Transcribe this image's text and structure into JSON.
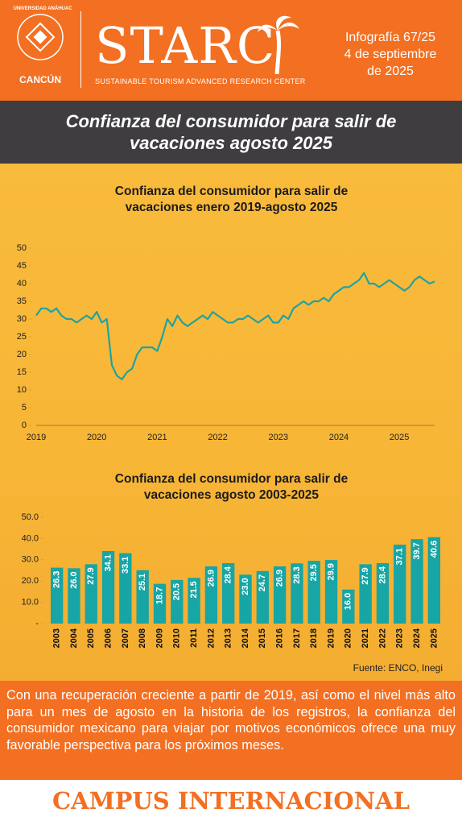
{
  "header": {
    "university": "UNIVERSIDAD ANÁHUAC",
    "campus": "CANCÚN",
    "brand": "STARC",
    "brand_subtitle": "SUSTAINABLE TOURISM ADVANCED RESEARCH CENTER",
    "issue": "Infografía 67/25",
    "date_line1": "4 de septiembre",
    "date_line2": "de 2025"
  },
  "title": "Confianza del consumidor para salir de vacaciones agosto 2025",
  "chart_data": [
    {
      "type": "line",
      "title": "Confianza del consumidor para salir de vacaciones enero 2019-agosto 2025",
      "color": "#1fa3a0",
      "categories": [
        "2019",
        null,
        null,
        null,
        null,
        null,
        null,
        null,
        null,
        null,
        null,
        null,
        "2020",
        null,
        null,
        null,
        null,
        null,
        null,
        null,
        null,
        null,
        null,
        null,
        "2021",
        null,
        null,
        null,
        null,
        null,
        null,
        null,
        null,
        null,
        null,
        null,
        "2022",
        null,
        null,
        null,
        null,
        null,
        null,
        null,
        null,
        null,
        null,
        null,
        "2023",
        null,
        null,
        null,
        null,
        null,
        null,
        null,
        null,
        null,
        null,
        null,
        "2024",
        null,
        null,
        null,
        null,
        null,
        null,
        null,
        null,
        null,
        null,
        null,
        "2025",
        null,
        null,
        null,
        null,
        null,
        null,
        null
      ],
      "values": [
        31,
        33,
        33,
        32,
        33,
        31,
        30,
        30,
        29,
        30,
        31,
        30,
        32,
        29,
        30,
        17,
        14,
        13,
        15,
        16,
        20,
        22,
        22,
        22,
        21,
        25,
        30,
        28,
        31,
        29,
        28,
        29,
        30,
        31,
        30,
        32,
        31,
        30,
        29,
        29,
        30,
        30,
        31,
        30,
        29,
        30,
        31,
        29,
        29,
        31,
        30,
        33,
        34,
        35,
        34,
        35,
        35,
        36,
        35,
        37,
        38,
        39,
        39,
        40,
        41,
        43,
        40,
        40,
        39,
        40,
        41,
        40,
        39,
        38,
        39,
        41,
        42,
        41,
        40,
        40.6
      ],
      "ylim": [
        0,
        50
      ],
      "yticks": [
        0,
        5,
        10,
        15,
        20,
        25,
        30,
        35,
        40,
        45,
        50
      ]
    },
    {
      "type": "bar",
      "title": "Confianza del consumidor para salir de vacaciones agosto 2003-2025",
      "color": "#17a5a5",
      "categories": [
        "2003",
        "2004",
        "2005",
        "2006",
        "2007",
        "2008",
        "2009",
        "2010",
        "2011",
        "2012",
        "2013",
        "2014",
        "2015",
        "2016",
        "2017",
        "2018",
        "2019",
        "2020",
        "2021",
        "2022",
        "2023",
        "2024",
        "2025"
      ],
      "values": [
        26.3,
        26.0,
        27.9,
        34.1,
        33.1,
        25.1,
        18.7,
        20.5,
        21.5,
        26.9,
        28.4,
        23.0,
        24.7,
        26.9,
        28.3,
        29.5,
        29.9,
        16.0,
        27.9,
        28.4,
        37.1,
        39.7,
        40.6
      ],
      "value_labels": [
        "26.3",
        "26.0",
        "27.9",
        "34.1",
        "33.1",
        "25.1",
        "18.7",
        "20.5",
        "21.5",
        "26.9",
        "28.4",
        "23.0",
        "24.7",
        "26.9",
        "28.3",
        "29.5",
        "29.9",
        "16.0",
        "27.9",
        "28.4",
        "37.1",
        "39.7",
        "40.6"
      ],
      "ylim": [
        0,
        50
      ],
      "yticks": [
        {
          "value": 0,
          "label": "-"
        },
        {
          "value": 10,
          "label": "10.0"
        },
        {
          "value": 20,
          "label": "20.0"
        },
        {
          "value": 30,
          "label": "30.0"
        },
        {
          "value": 40,
          "label": "40.0"
        },
        {
          "value": 50,
          "label": "50.0"
        }
      ]
    }
  ],
  "source": "Fuente: ENCO, Inegi",
  "summary": "Con una recuperación creciente a partir de 2019, así como el nivel más alto para un mes de agosto en la historia de los registros, la confianza del consumidor mexicano para viajar por motivos económicos ofrece una muy favorable perspectiva para los próximos meses.",
  "footer": "CAMPUS INTERNACIONAL"
}
